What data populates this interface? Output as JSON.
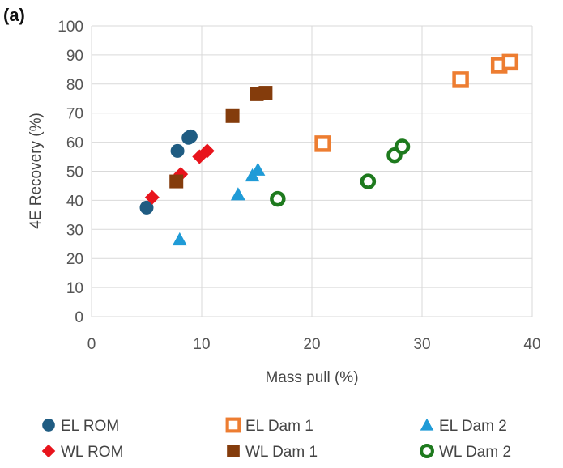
{
  "panel_label": "(a)",
  "chart_data": {
    "type": "scatter",
    "title": "",
    "xlabel": "Mass pull (%)",
    "ylabel": "4E Recovery (%)",
    "xlim": [
      0,
      40
    ],
    "ylim": [
      0,
      100
    ],
    "xticks": [
      0,
      10,
      20,
      30,
      40
    ],
    "yticks": [
      0,
      10,
      20,
      30,
      40,
      50,
      60,
      70,
      80,
      90,
      100
    ],
    "grid": true,
    "legend_position": "bottom",
    "series": [
      {
        "name": "EL ROM",
        "marker": "circle",
        "color": "#1f5c82",
        "x": [
          5.0,
          7.8,
          8.8,
          9.0
        ],
        "y": [
          37.5,
          57.0,
          61.5,
          62.0
        ]
      },
      {
        "name": "EL Dam 1",
        "marker": "square-open",
        "color": "#ed7d31",
        "x": [
          21.0,
          33.5,
          37.0,
          38.0
        ],
        "y": [
          59.5,
          81.5,
          86.5,
          87.5
        ]
      },
      {
        "name": "EL Dam 2",
        "marker": "triangle",
        "color": "#1f9bd7",
        "x": [
          8.0,
          13.3,
          14.6,
          15.1
        ],
        "y": [
          26.5,
          42.0,
          48.5,
          50.5
        ]
      },
      {
        "name": "WL ROM",
        "marker": "diamond",
        "color": "#e8141c",
        "x": [
          5.5,
          8.1,
          9.8,
          10.5
        ],
        "y": [
          41.0,
          49.0,
          55.0,
          57.0
        ]
      },
      {
        "name": "WL Dam 1",
        "marker": "square",
        "color": "#843c0c",
        "x": [
          7.7,
          12.8,
          15.0,
          15.8
        ],
        "y": [
          46.5,
          69.0,
          76.5,
          77.0
        ]
      },
      {
        "name": "WL Dam 2",
        "marker": "circle-open",
        "color": "#1e7a1e",
        "x": [
          16.9,
          25.1,
          27.5,
          28.2
        ],
        "y": [
          40.5,
          46.5,
          55.5,
          58.5
        ]
      }
    ]
  }
}
